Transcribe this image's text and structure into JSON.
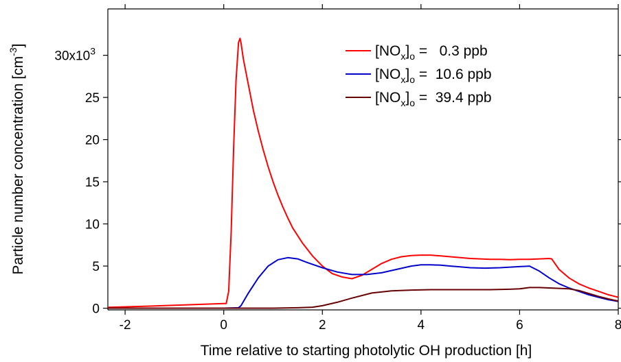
{
  "chart_data": {
    "type": "line",
    "title": "",
    "xlabel": "Time relative to starting photolytic OH production [h]",
    "ylabel": "Particle number concentration [cm",
    "ylabel_unit_exponent": "-3",
    "ylabel_close": "]",
    "xlim": [
      -2.35,
      8.0
    ],
    "ylim": [
      -0.2,
      35.5
    ],
    "x_ticks": [
      -2,
      0,
      2,
      4,
      6,
      8
    ],
    "x_tick_labels": [
      "-2",
      "0",
      "2",
      "4",
      "6",
      "8"
    ],
    "y_ticks": [
      0,
      5,
      10,
      15,
      20,
      25,
      30
    ],
    "y_tick_labels": [
      "0",
      "5",
      "10",
      "15",
      "20",
      "25",
      "30x10"
    ],
    "y_top_label_exponent": "3",
    "grid": false,
    "legend_position": "top-right",
    "series": [
      {
        "name": "[NOx]o = 0.3 ppb",
        "legend": {
          "prefix": "[NO",
          "sub1": "x",
          "mid": "]",
          "sub2": "o",
          "value": " =   0.3 ppb"
        },
        "color": "#ff0000",
        "x": [
          -2.35,
          -1.5,
          -1.0,
          -0.5,
          0.0,
          0.05,
          0.1,
          0.15,
          0.2,
          0.25,
          0.3,
          0.33,
          0.35,
          0.4,
          0.5,
          0.6,
          0.7,
          0.8,
          0.9,
          1.0,
          1.1,
          1.2,
          1.3,
          1.4,
          1.5,
          1.6,
          1.8,
          2.0,
          2.2,
          2.4,
          2.6,
          2.8,
          3.0,
          3.2,
          3.4,
          3.6,
          3.8,
          4.0,
          4.2,
          4.4,
          4.6,
          4.8,
          5.0,
          5.2,
          5.4,
          5.6,
          5.8,
          6.0,
          6.2,
          6.4,
          6.6,
          6.65,
          6.8,
          7.0,
          7.2,
          7.4,
          7.6,
          7.8,
          8.0
        ],
        "y": [
          0.1,
          0.25,
          0.35,
          0.45,
          0.55,
          0.55,
          2.0,
          9.0,
          19.0,
          27.0,
          31.5,
          32.0,
          31.5,
          29.5,
          26.5,
          23.5,
          21.0,
          18.8,
          16.8,
          15.0,
          13.4,
          12.0,
          10.7,
          9.5,
          8.6,
          7.7,
          6.2,
          5.0,
          4.1,
          3.7,
          3.5,
          3.9,
          4.6,
          5.3,
          5.8,
          6.1,
          6.25,
          6.3,
          6.3,
          6.2,
          6.1,
          6.0,
          5.9,
          5.85,
          5.8,
          5.8,
          5.75,
          5.8,
          5.8,
          5.85,
          5.9,
          5.85,
          4.6,
          3.6,
          2.9,
          2.4,
          2.0,
          1.6,
          1.3
        ]
      },
      {
        "name": "[NOx]o = 10.6 ppb",
        "legend": {
          "prefix": "[NO",
          "sub1": "x",
          "mid": "]",
          "sub2": "o",
          "value": " =  10.6 ppb"
        },
        "color": "#0000cc",
        "x": [
          -2.35,
          0.0,
          0.3,
          0.35,
          0.5,
          0.7,
          0.9,
          1.1,
          1.3,
          1.5,
          1.7,
          2.0,
          2.3,
          2.6,
          2.9,
          3.2,
          3.5,
          3.8,
          4.0,
          4.2,
          4.4,
          4.6,
          4.8,
          5.0,
          5.3,
          5.6,
          5.9,
          6.2,
          6.4,
          6.6,
          6.8,
          7.0,
          7.2,
          7.4,
          7.6,
          7.8,
          8.0
        ],
        "y": [
          0.0,
          0.0,
          0.05,
          0.3,
          1.8,
          3.6,
          5.0,
          5.75,
          6.0,
          5.85,
          5.4,
          4.8,
          4.3,
          4.0,
          4.0,
          4.2,
          4.6,
          5.0,
          5.15,
          5.15,
          5.1,
          5.0,
          4.9,
          4.8,
          4.75,
          4.8,
          4.9,
          5.0,
          4.4,
          3.6,
          2.9,
          2.4,
          2.0,
          1.6,
          1.3,
          1.0,
          0.8
        ]
      },
      {
        "name": "[NOx]o = 39.4 ppb",
        "legend": {
          "prefix": "[NO",
          "sub1": "x",
          "mid": "]",
          "sub2": "o",
          "value": " =  39.4 ppb"
        },
        "color": "#660000",
        "x": [
          -2.35,
          0.0,
          0.5,
          1.0,
          1.5,
          1.8,
          2.0,
          2.3,
          2.6,
          3.0,
          3.4,
          3.8,
          4.2,
          4.6,
          5.0,
          5.4,
          5.8,
          6.0,
          6.2,
          6.4,
          6.6,
          6.8,
          7.0,
          7.2,
          7.4,
          7.6,
          7.8,
          8.0
        ],
        "y": [
          0.0,
          0.0,
          0.0,
          0.0,
          0.05,
          0.12,
          0.3,
          0.7,
          1.2,
          1.8,
          2.05,
          2.15,
          2.2,
          2.2,
          2.2,
          2.2,
          2.25,
          2.3,
          2.45,
          2.45,
          2.4,
          2.35,
          2.3,
          2.1,
          1.75,
          1.4,
          1.1,
          0.85
        ]
      }
    ]
  }
}
